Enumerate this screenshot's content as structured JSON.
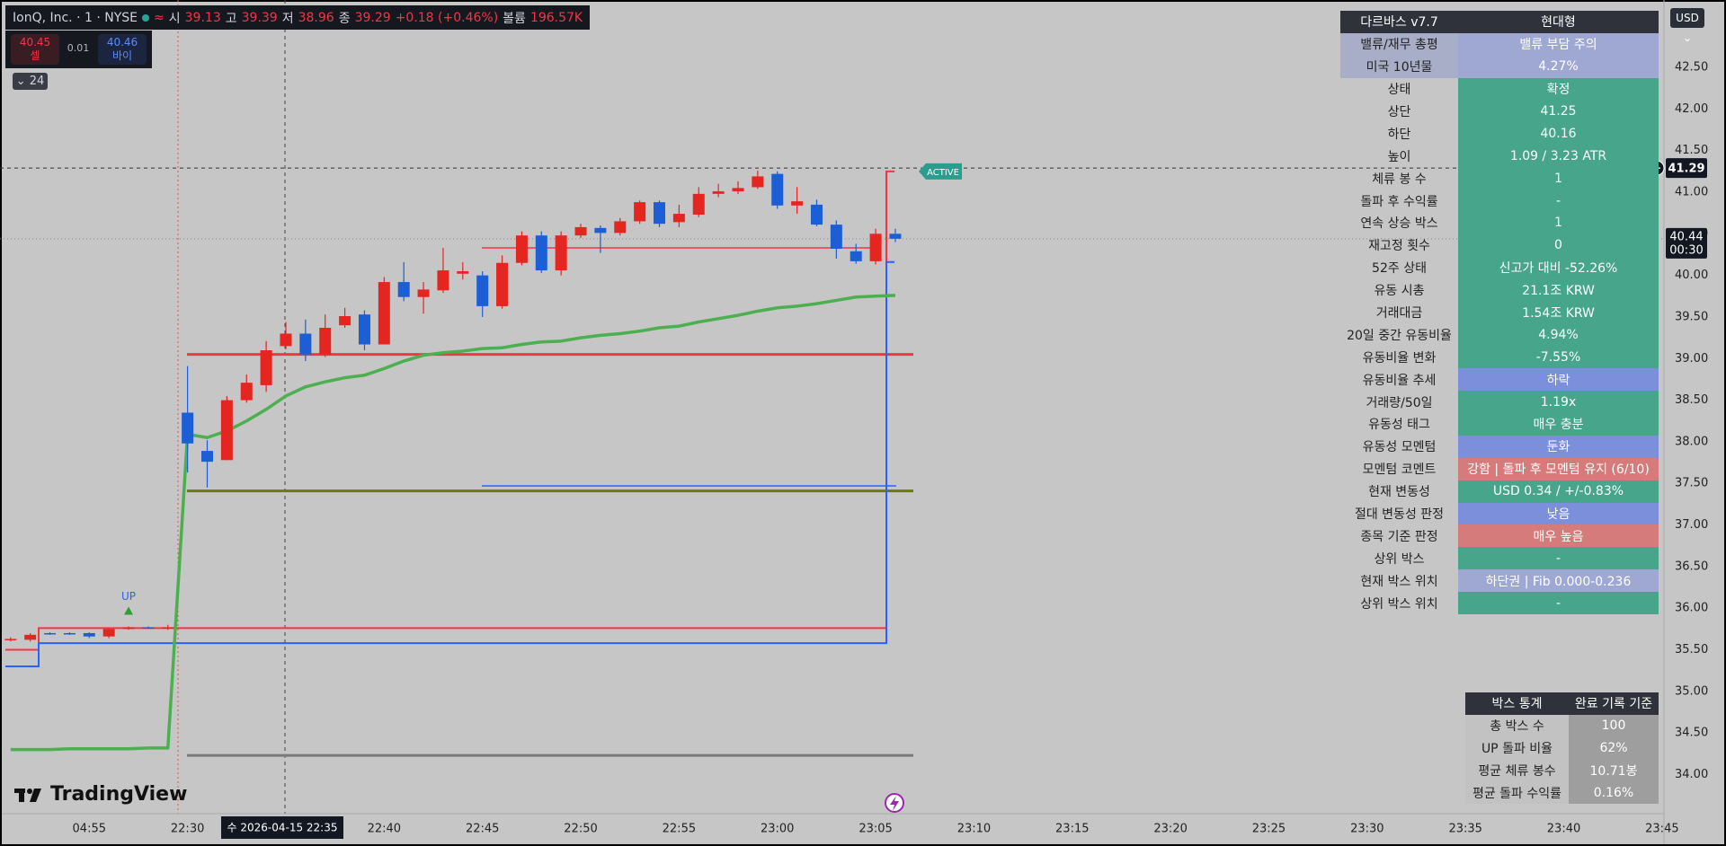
{
  "header": {
    "symbol": "IonQ, Inc. · 1 · NYSE",
    "icon": "≈",
    "open_label": "시",
    "open": "39.13",
    "high_label": "고",
    "high": "39.39",
    "low_label": "저",
    "low": "38.96",
    "close_label": "종",
    "close": "39.29",
    "change": "+0.18 (+0.46%)",
    "volume_label": "볼륨",
    "volume": "196.57K"
  },
  "trade": {
    "sell_price": "40.45",
    "sell": "셀",
    "spread": "0.01",
    "buy_price": "40.46",
    "buy": "바이"
  },
  "interval_badge": "24",
  "currency": "USD",
  "logo": "TradingView",
  "crosshair": {
    "time": "수 2026-04-15  22:35",
    "price": 41.29
  },
  "last_price": {
    "price": 40.44,
    "countdown": "00:30"
  },
  "chart_data": {
    "type": "candlestick",
    "up_color": "#e52520",
    "down_color": "#1c5fd4",
    "open": [
      35.62,
      35.62,
      35.7,
      35.7,
      35.7,
      35.66,
      35.75,
      35.77,
      35.76,
      38.35,
      37.89,
      37.78,
      38.5,
      38.68,
      39.15,
      39.3,
      39.05,
      39.4,
      39.53,
      39.17,
      39.92,
      39.74,
      39.82,
      40.02,
      40.0,
      39.63,
      40.15,
      40.48,
      40.06,
      40.48,
      40.57,
      40.51,
      40.65,
      40.88,
      40.64,
      40.73,
      40.98,
      41.01,
      41.06,
      41.22,
      40.84,
      40.85,
      40.61,
      40.29,
      40.17,
      40.5
    ],
    "high": [
      35.65,
      35.7,
      35.71,
      35.71,
      35.71,
      35.76,
      35.78,
      35.78,
      35.8,
      38.91,
      38.02,
      38.55,
      38.81,
      39.21,
      39.44,
      39.47,
      39.53,
      39.61,
      39.58,
      39.98,
      40.16,
      39.92,
      40.33,
      40.16,
      40.05,
      40.24,
      40.53,
      40.53,
      40.53,
      40.62,
      40.6,
      40.69,
      40.9,
      40.9,
      40.85,
      41.06,
      41.1,
      41.13,
      41.26,
      41.25,
      41.06,
      40.91,
      40.66,
      40.38,
      40.56,
      40.56
    ],
    "low": [
      35.6,
      35.6,
      35.68,
      35.68,
      35.64,
      35.64,
      35.74,
      35.75,
      35.74,
      37.63,
      37.45,
      37.78,
      38.47,
      38.6,
      39.11,
      38.97,
      39.02,
      39.37,
      39.1,
      39.17,
      39.69,
      39.54,
      39.79,
      39.95,
      39.5,
      39.6,
      40.12,
      40.03,
      40.0,
      40.45,
      40.27,
      40.48,
      40.62,
      40.58,
      40.58,
      40.7,
      40.94,
      40.98,
      41.04,
      40.8,
      40.74,
      40.59,
      40.2,
      40.14,
      40.13,
      40.4
    ],
    "close": [
      35.63,
      35.68,
      35.69,
      35.69,
      35.66,
      35.75,
      35.77,
      35.76,
      35.77,
      37.98,
      37.76,
      38.5,
      38.71,
      39.1,
      39.3,
      39.05,
      39.37,
      39.51,
      39.17,
      39.92,
      39.74,
      39.83,
      40.06,
      40.05,
      39.63,
      40.15,
      40.48,
      40.06,
      40.48,
      40.58,
      40.51,
      40.65,
      40.88,
      40.62,
      40.74,
      40.98,
      41.01,
      41.05,
      41.19,
      40.84,
      40.89,
      40.61,
      40.32,
      40.17,
      40.5,
      40.44
    ],
    "ma": {
      "color": "#4caf50",
      "values": [
        34.3,
        34.3,
        34.3,
        34.31,
        34.31,
        34.31,
        34.31,
        34.32,
        34.32,
        38.09,
        38.05,
        38.13,
        38.25,
        38.39,
        38.55,
        38.66,
        38.72,
        38.77,
        38.8,
        38.88,
        38.97,
        39.04,
        39.07,
        39.09,
        39.12,
        39.13,
        39.17,
        39.2,
        39.21,
        39.25,
        39.28,
        39.3,
        39.33,
        39.37,
        39.39,
        39.44,
        39.48,
        39.52,
        39.57,
        39.61,
        39.63,
        39.66,
        39.7,
        39.74,
        39.75,
        39.76
      ]
    },
    "levels": [
      {
        "value": 39.05,
        "color": "#f23645"
      },
      {
        "value": 37.41,
        "color": "#6b7a0a"
      },
      {
        "value": 34.23,
        "color": "#7a7a7a"
      },
      {
        "value": 37.47,
        "color": "#2962ff"
      },
      {
        "value": 40.33,
        "color": "#f23645"
      }
    ],
    "box_upper": {
      "color": "#f23645",
      "values": [
        35.5,
        35.76,
        41.25
      ]
    },
    "box_lower": {
      "color": "#2962ff",
      "values": [
        35.3,
        35.58,
        40.16
      ]
    },
    "up_label": "UP",
    "active_label": "ACTIVE",
    "ylim": [
      33.53,
      43.31
    ],
    "yticks": [
      {
        "value": 42.5,
        "label": "42.50"
      },
      {
        "value": 42,
        "label": "42.00"
      },
      {
        "value": 41.5,
        "label": "41.50"
      },
      {
        "value": 41,
        "label": "41.00"
      },
      {
        "value": 40.5,
        "label": "40.50"
      },
      {
        "value": 40,
        "label": "40.00"
      },
      {
        "value": 39.5,
        "label": "39.50"
      },
      {
        "value": 39,
        "label": "39.00"
      },
      {
        "value": 38.5,
        "label": "38.50"
      },
      {
        "value": 38,
        "label": "38.00"
      },
      {
        "value": 37.5,
        "label": "37.50"
      },
      {
        "value": 37,
        "label": "37.00"
      },
      {
        "value": 36.5,
        "label": "36.50"
      },
      {
        "value": 36,
        "label": "36.00"
      },
      {
        "value": 35.5,
        "label": "35.50"
      },
      {
        "value": 35,
        "label": "35.00"
      },
      {
        "value": 34.5,
        "label": "34.50"
      },
      {
        "value": 34,
        "label": "34.00"
      }
    ],
    "xticks": [
      "04:55",
      "22:30",
      null,
      "22:40",
      "22:45",
      "22:50",
      "22:55",
      "23:00",
      "23:05",
      "23:10",
      "23:15",
      "23:20",
      "23:25",
      "23:30",
      "23:35",
      "23:40",
      "23:45"
    ]
  },
  "dashboard": {
    "header": [
      "다르바스 v7.7",
      "현대형"
    ],
    "rows": [
      {
        "label": "밸류/재무 총평",
        "value": "밸류 부담 주의",
        "color": "#9ea8d2",
        "label_color": "#a9aec8"
      },
      {
        "label": "미국 10년물",
        "value": "4.27%",
        "color": "#9ea8d2",
        "label_color": "#a9aec8"
      },
      {
        "label": "상태",
        "value": "확정",
        "color": "#46a58a"
      },
      {
        "label": "상단",
        "value": "41.25",
        "color": "#46a58a"
      },
      {
        "label": "하단",
        "value": "40.16",
        "color": "#46a58a"
      },
      {
        "label": "높이",
        "value": "1.09 / 3.23 ATR",
        "color": "#46a58a"
      },
      {
        "label": "체류 봉 수",
        "value": "1",
        "color": "#46a58a"
      },
      {
        "label": "돌파 후 수익률",
        "value": "-",
        "color": "#46a58a"
      },
      {
        "label": "연속 상승 박스",
        "value": "1",
        "color": "#46a58a"
      },
      {
        "label": "재고정 횟수",
        "value": "0",
        "color": "#46a58a"
      },
      {
        "label": "52주 상태",
        "value": "신고가 대비 -52.26%",
        "color": "#46a58a"
      },
      {
        "label": "유동 시총",
        "value": "21.1조 KRW",
        "color": "#46a58a"
      },
      {
        "label": "거래대금",
        "value": "1.54조 KRW",
        "color": "#46a58a"
      },
      {
        "label": "20일 중간 유동비율",
        "value": "4.94%",
        "color": "#46a58a"
      },
      {
        "label": "유동비율 변화",
        "value": "-7.55%",
        "color": "#46a58a"
      },
      {
        "label": "유동비율 추세",
        "value": "하락",
        "color": "#7b8fdb"
      },
      {
        "label": "거래량/50일",
        "value": "1.19x",
        "color": "#46a58a"
      },
      {
        "label": "유동성 태그",
        "value": "매우 충분",
        "color": "#46a58a"
      },
      {
        "label": "유동성 모멘텀",
        "value": "둔화",
        "color": "#7b8fdb"
      },
      {
        "label": "모멘텀 코멘트",
        "value": "강함 | 돌파 후 모멘텀 유지 (6/10)",
        "color": "#d67b7b"
      },
      {
        "label": "현재 변동성",
        "value": "USD 0.34 / +/-0.83%",
        "color": "#46a58a"
      },
      {
        "label": "절대 변동성 판정",
        "value": "낮음",
        "color": "#7b8fdb"
      },
      {
        "label": "종목 기준 판정",
        "value": "매우 높음",
        "color": "#d67b7b"
      },
      {
        "label": "상위 박스",
        "value": "-",
        "color": "#46a58a"
      },
      {
        "label": "현재 박스 위치",
        "value": "하단권 | Fib 0.000-0.236",
        "color": "#9ea8d2"
      },
      {
        "label": "상위 박스 위치",
        "value": "-",
        "color": "#46a58a"
      }
    ]
  },
  "stats": {
    "header": [
      "박스 통계",
      "완료 기록 기준"
    ],
    "rows": [
      {
        "label": "총 박스 수",
        "value": "100"
      },
      {
        "label": "UP 돌파 비율",
        "value": "62%"
      },
      {
        "label": "평균 체류 봉수",
        "value": "10.71봉"
      },
      {
        "label": "평균 돌파 수익률",
        "value": "0.16%"
      }
    ]
  }
}
